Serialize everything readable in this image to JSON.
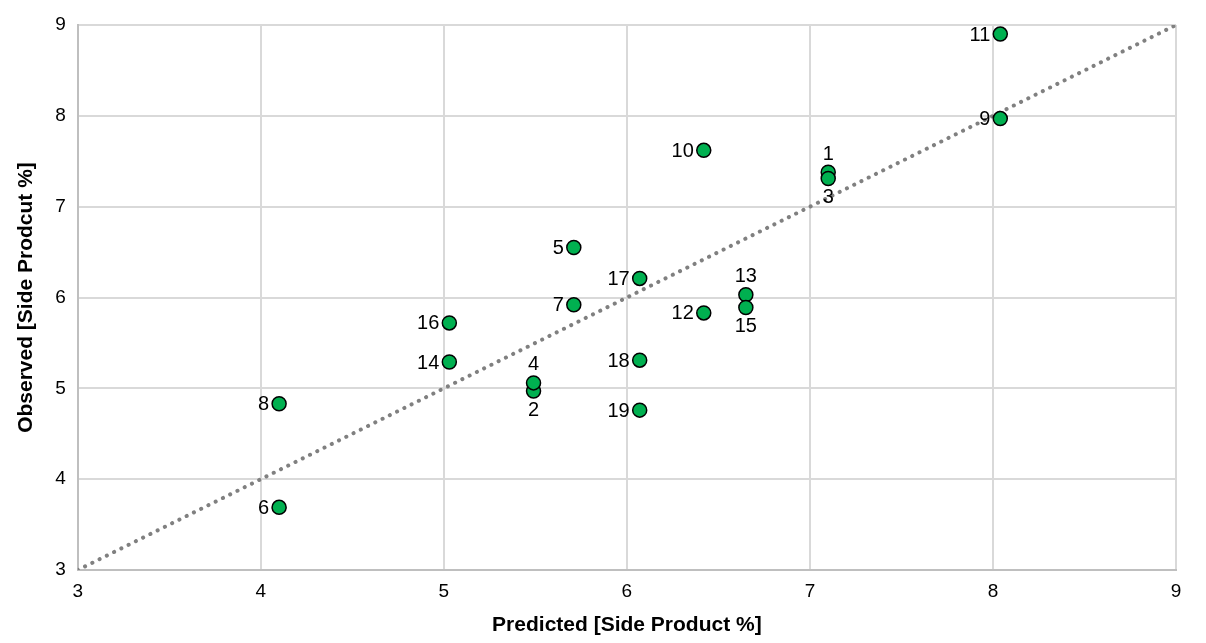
{
  "chart_data": {
    "type": "scatter",
    "xlabel": "Predicted [Side Product %]",
    "ylabel": "Observed [Side Prodcut %]",
    "xlim": [
      3,
      9
    ],
    "xticks": [
      3,
      4,
      5,
      6,
      7,
      8,
      9
    ],
    "ylim": [
      3,
      9
    ],
    "yticks": [
      3,
      4,
      5,
      6,
      7,
      8,
      9
    ],
    "grid": true,
    "legend": false,
    "marker": "circle",
    "series": [
      {
        "type": "line",
        "color": "#808080",
        "line_style": "dotted",
        "marker": "none",
        "x": [
          3,
          9
        ],
        "values": [
          3,
          9
        ]
      },
      {
        "type": "scatter",
        "color": "#00b050",
        "x": [
          7.1,
          5.49,
          7.1,
          5.49,
          5.71,
          4.1,
          5.71,
          4.1,
          8.04,
          6.42,
          8.04,
          6.42,
          6.65,
          5.03,
          6.65,
          5.03,
          6.07,
          6.07,
          6.07
        ],
        "values": [
          7.38,
          4.97,
          7.31,
          5.06,
          6.55,
          3.69,
          5.92,
          4.83,
          7.97,
          7.62,
          8.9,
          5.83,
          6.03,
          5.29,
          5.89,
          5.72,
          6.21,
          5.31,
          4.76
        ]
      }
    ],
    "annotations": [
      {
        "text": "1",
        "x": 7.1,
        "y": 7.38
      },
      {
        "text": "2",
        "x": 5.49,
        "y": 4.97
      },
      {
        "text": "3",
        "x": 7.1,
        "y": 7.31
      },
      {
        "text": "4",
        "x": 5.49,
        "y": 5.06
      },
      {
        "text": "5",
        "x": 5.71,
        "y": 6.55
      },
      {
        "text": "6",
        "x": 4.1,
        "y": 3.69
      },
      {
        "text": "7",
        "x": 5.71,
        "y": 5.92
      },
      {
        "text": "8",
        "x": 4.1,
        "y": 4.83
      },
      {
        "text": "9",
        "x": 8.04,
        "y": 7.97
      },
      {
        "text": "10",
        "x": 6.42,
        "y": 7.62
      },
      {
        "text": "11",
        "x": 8.04,
        "y": 8.9
      },
      {
        "text": "12",
        "x": 6.42,
        "y": 5.83
      },
      {
        "text": "13",
        "x": 6.65,
        "y": 6.03
      },
      {
        "text": "14",
        "x": 5.03,
        "y": 5.29
      },
      {
        "text": "15",
        "x": 6.65,
        "y": 5.89
      },
      {
        "text": "16",
        "x": 5.03,
        "y": 5.72
      },
      {
        "text": "17",
        "x": 6.07,
        "y": 6.21
      },
      {
        "text": "18",
        "x": 6.07,
        "y": 5.31
      },
      {
        "text": "19",
        "x": 6.07,
        "y": 4.76
      }
    ]
  }
}
